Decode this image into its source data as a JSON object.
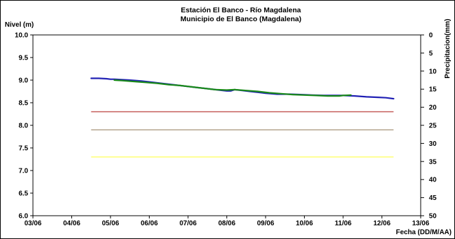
{
  "chart_data": {
    "type": "line",
    "title": "Estación El Banco - Río Magdalena",
    "subtitle": "Municipio de El Banco (Magdalena)",
    "ylabel": "Nivel (m)",
    "y2label": "Precipitacion(mm)",
    "xlabel": "Fecha (DD/M/AA)",
    "ylim": [
      6.0,
      10.0
    ],
    "yticks": [
      "6.0",
      "6.5",
      "7.0",
      "7.5",
      "8.0",
      "8.5",
      "9.0",
      "9.5",
      "10.0"
    ],
    "y2lim": [
      0,
      50
    ],
    "y2ticks": [
      "0",
      "5",
      "10",
      "15",
      "20",
      "25",
      "30",
      "35",
      "40",
      "45",
      "50"
    ],
    "xlim": [
      3,
      13
    ],
    "xticks": [
      "03/06",
      "04/06",
      "05/06",
      "06/06",
      "07/06",
      "08/06",
      "09/06",
      "10/06",
      "11/06",
      "12/06",
      "13/06"
    ],
    "grid": false,
    "series": [
      {
        "color": "#1f1fb4",
        "x": [
          4.5,
          4.7,
          4.9,
          5.0,
          5.1,
          5.3,
          5.5,
          5.8,
          6.0,
          6.3,
          6.6,
          6.9,
          7.2,
          7.5,
          7.8,
          8.0,
          8.1,
          8.2,
          8.4,
          8.6,
          8.8,
          9.0,
          9.3,
          9.6,
          9.9,
          10.2,
          10.5,
          10.8,
          11.0,
          11.3,
          11.6,
          11.9,
          12.1,
          12.3
        ],
        "y": [
          9.04,
          9.04,
          9.03,
          9.02,
          9.02,
          9.01,
          9.0,
          8.98,
          8.96,
          8.93,
          8.9,
          8.87,
          8.84,
          8.81,
          8.78,
          8.76,
          8.76,
          8.79,
          8.77,
          8.75,
          8.73,
          8.71,
          8.69,
          8.69,
          8.68,
          8.67,
          8.66,
          8.66,
          8.66,
          8.65,
          8.63,
          8.62,
          8.61,
          8.59
        ]
      },
      {
        "color": "#1a8a1a",
        "x": [
          5.1,
          5.3,
          5.6,
          5.9,
          6.2,
          6.5,
          6.8,
          7.1,
          7.4,
          7.7,
          8.0,
          8.2,
          8.5,
          8.8,
          9.1,
          9.4,
          9.7,
          10.0,
          10.3,
          10.6,
          10.9,
          11.0,
          11.2
        ],
        "y": [
          9.0,
          8.99,
          8.97,
          8.95,
          8.93,
          8.9,
          8.88,
          8.85,
          8.82,
          8.79,
          8.78,
          8.79,
          8.77,
          8.75,
          8.72,
          8.7,
          8.68,
          8.67,
          8.66,
          8.65,
          8.65,
          8.66,
          8.67
        ]
      }
    ],
    "reference_lines": [
      {
        "y": 8.3,
        "color": "#c0504d"
      },
      {
        "y": 7.9,
        "color": "#a8967a"
      },
      {
        "y": 7.3,
        "color": "#ffff66"
      }
    ],
    "reference_range_x": [
      4.5,
      12.3
    ]
  }
}
